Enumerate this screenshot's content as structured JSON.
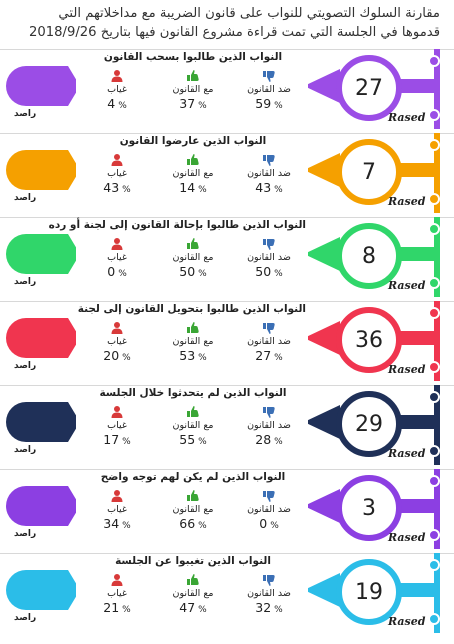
{
  "header": {
    "line1": "مقارنة السلوك التصويتي للنواب على قانون الضريبة مع مداخلاتهم التي",
    "line2": "قدموها في الجلسة التي تمت قراءة مشروع القانون فيها بتاريخ 2018/9/26"
  },
  "labels": {
    "against": "ضد القانون",
    "for": "مع القانون",
    "absent": "غياب",
    "percent": "%"
  },
  "brand": {
    "latin": "Rased",
    "arabic": "راصد"
  },
  "icons": {
    "against": "thumbs-down-icon",
    "for": "thumbs-up-icon",
    "absent": "person-icon"
  },
  "colors": {
    "against_icon": "#3b6fb5",
    "for_icon": "#3aa635",
    "absent_icon": "#d83a3a"
  },
  "sections": [
    {
      "count": "27",
      "title": "النواب الذين طالبوا بسحب القانون",
      "against": "59",
      "for": "37",
      "absent": "4",
      "color": "#9b4de6"
    },
    {
      "count": "7",
      "title": "النواب الذين عارضوا القانون",
      "against": "43",
      "for": "14",
      "absent": "43",
      "color": "#f5a000"
    },
    {
      "count": "8",
      "title": "النواب الذين طالبوا بإحالة القانون إلى لجنة أو رده",
      "against": "50",
      "for": "50",
      "absent": "0",
      "color": "#30d66a"
    },
    {
      "count": "36",
      "title": "النواب الذين طالبوا بتحويل القانون إلى لجنة",
      "against": "27",
      "for": "53",
      "absent": "20",
      "color": "#f0354f"
    },
    {
      "count": "29",
      "title": "النواب الذين لم يتحدثوا خلال الجلسة",
      "against": "28",
      "for": "55",
      "absent": "17",
      "color": "#1f3058"
    },
    {
      "count": "3",
      "title": "النواب الذين لم يكن لهم توجه واضح",
      "against": "0",
      "for": "66",
      "absent": "34",
      "color": "#8c3fe2"
    },
    {
      "count": "19",
      "title": "النواب الذين تغيبوا عن الجلسة",
      "against": "32",
      "for": "47",
      "absent": "21",
      "color": "#2bbde8"
    }
  ]
}
